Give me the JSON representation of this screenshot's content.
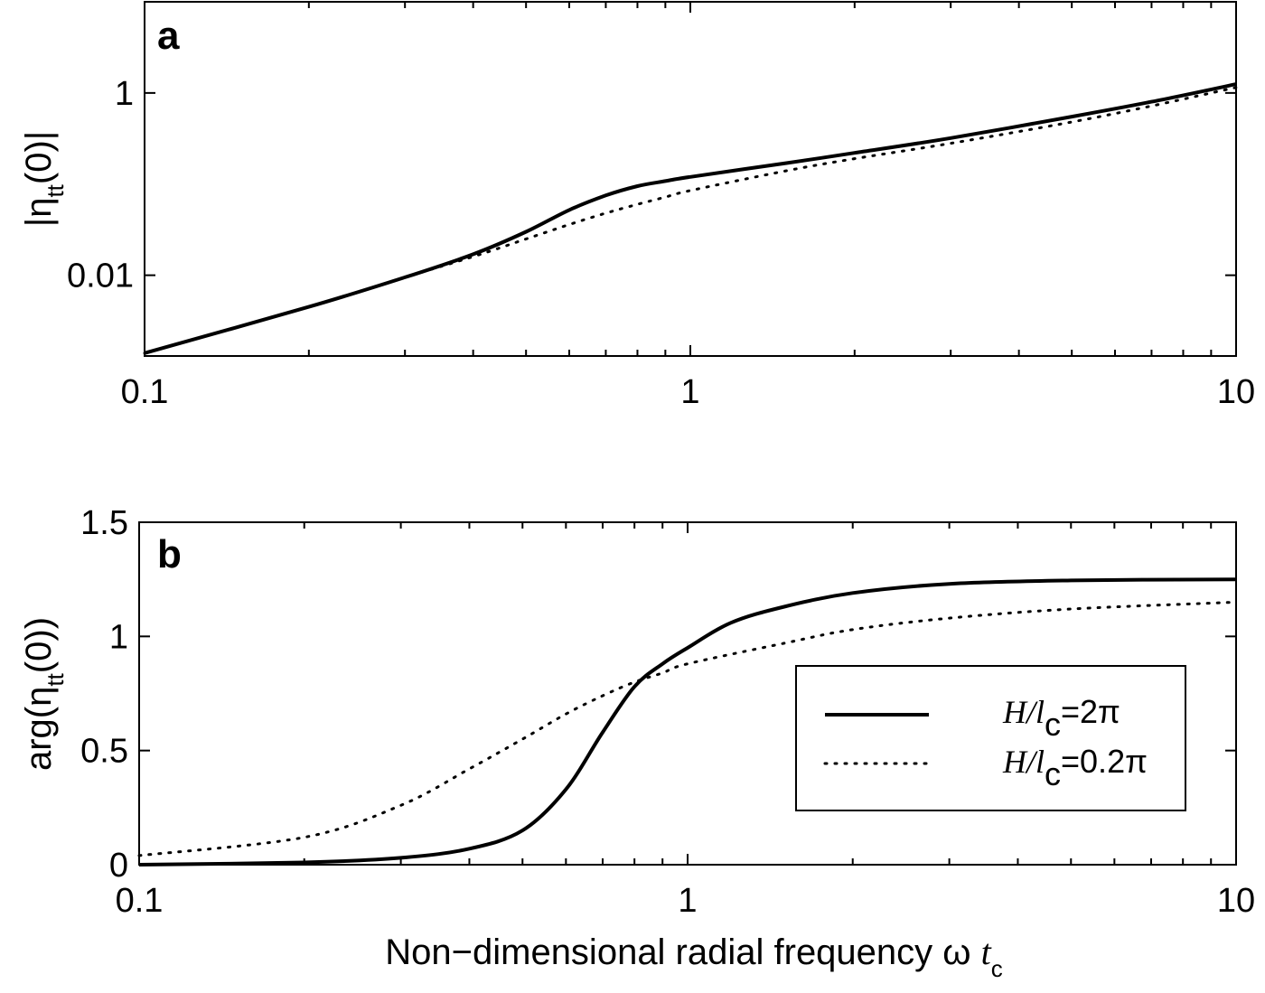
{
  "chart_data": [
    {
      "panel": "a",
      "type": "line",
      "ylabel": "|η_tt(0)|",
      "xlabel": "",
      "xscale": "log",
      "yscale": "log",
      "xlim": [
        0.1,
        10
      ],
      "ylim": [
        0.0013,
        10
      ],
      "xticks": [
        {
          "value": 0.1,
          "label": "0.1"
        },
        {
          "value": 1,
          "label": "1"
        },
        {
          "value": 10,
          "label": "10"
        }
      ],
      "yticks": [
        {
          "value": 0.01,
          "label": "0.01"
        },
        {
          "value": 1,
          "label": "1"
        }
      ],
      "series": [
        {
          "name": "H/l_c=2π",
          "style": "solid",
          "x": [
            0.1,
            0.2,
            0.3,
            0.4,
            0.5,
            0.6,
            0.7,
            0.8,
            0.9,
            1,
            1.5,
            2,
            3,
            5,
            7,
            10
          ],
          "y": [
            0.0014,
            0.0045,
            0.0095,
            0.017,
            0.03,
            0.052,
            0.075,
            0.095,
            0.108,
            0.12,
            0.17,
            0.22,
            0.32,
            0.55,
            0.8,
            1.25
          ]
        },
        {
          "name": "H/l_c=0.2π",
          "style": "dotted",
          "x": [
            0.1,
            0.2,
            0.3,
            0.4,
            0.5,
            0.6,
            0.7,
            0.8,
            0.9,
            1,
            1.5,
            2,
            3,
            5,
            7,
            10
          ],
          "y": [
            0.0014,
            0.0045,
            0.0095,
            0.016,
            0.025,
            0.036,
            0.048,
            0.06,
            0.072,
            0.085,
            0.14,
            0.19,
            0.28,
            0.48,
            0.72,
            1.15
          ]
        }
      ]
    },
    {
      "panel": "b",
      "type": "line",
      "ylabel": "arg(η_tt(0))",
      "xlabel": "Non-dimensional radial frequency ω t_c",
      "xscale": "log",
      "yscale": "linear",
      "xlim": [
        0.1,
        10
      ],
      "ylim": [
        0,
        1.5
      ],
      "xticks": [
        {
          "value": 0.1,
          "label": "0.1"
        },
        {
          "value": 1,
          "label": "1"
        },
        {
          "value": 10,
          "label": "10"
        }
      ],
      "yticks": [
        {
          "value": 0,
          "label": "0"
        },
        {
          "value": 0.5,
          "label": "0.5"
        },
        {
          "value": 1,
          "label": "1"
        },
        {
          "value": 1.5,
          "label": "1.5"
        }
      ],
      "legend": {
        "position": "center-right"
      },
      "series": [
        {
          "name": "H/l_c=2π",
          "style": "solid",
          "x": [
            0.1,
            0.2,
            0.3,
            0.4,
            0.5,
            0.6,
            0.7,
            0.8,
            0.9,
            1,
            1.2,
            1.5,
            2,
            3,
            5,
            10
          ],
          "y": [
            0.0,
            0.01,
            0.03,
            0.07,
            0.15,
            0.33,
            0.58,
            0.78,
            0.88,
            0.95,
            1.06,
            1.13,
            1.19,
            1.23,
            1.245,
            1.25
          ]
        },
        {
          "name": "H/l_c=0.2π",
          "style": "dotted",
          "x": [
            0.1,
            0.2,
            0.3,
            0.4,
            0.5,
            0.6,
            0.7,
            0.8,
            0.9,
            1,
            1.5,
            2,
            3,
            5,
            10
          ],
          "y": [
            0.04,
            0.12,
            0.26,
            0.42,
            0.55,
            0.66,
            0.74,
            0.8,
            0.84,
            0.88,
            0.97,
            1.03,
            1.08,
            1.12,
            1.15
          ]
        }
      ]
    }
  ],
  "panels": {
    "a": {
      "tag": "a",
      "ylabel_main": "|η",
      "ylabel_sub": "tt",
      "ylabel_end": "(0)|"
    },
    "b": {
      "tag": "b",
      "ylabel_main": "arg(η",
      "ylabel_sub": "tt",
      "ylabel_end": "(0))"
    }
  },
  "xlabel": {
    "main": "Non−dimensional radial frequency ω ",
    "var": "t",
    "sub": "c"
  },
  "legend": {
    "entries": [
      {
        "italic": "H/l",
        "sub": "c",
        "rest": "=2π"
      },
      {
        "italic": "H/l",
        "sub": "c",
        "rest": "=0.2π"
      }
    ]
  }
}
